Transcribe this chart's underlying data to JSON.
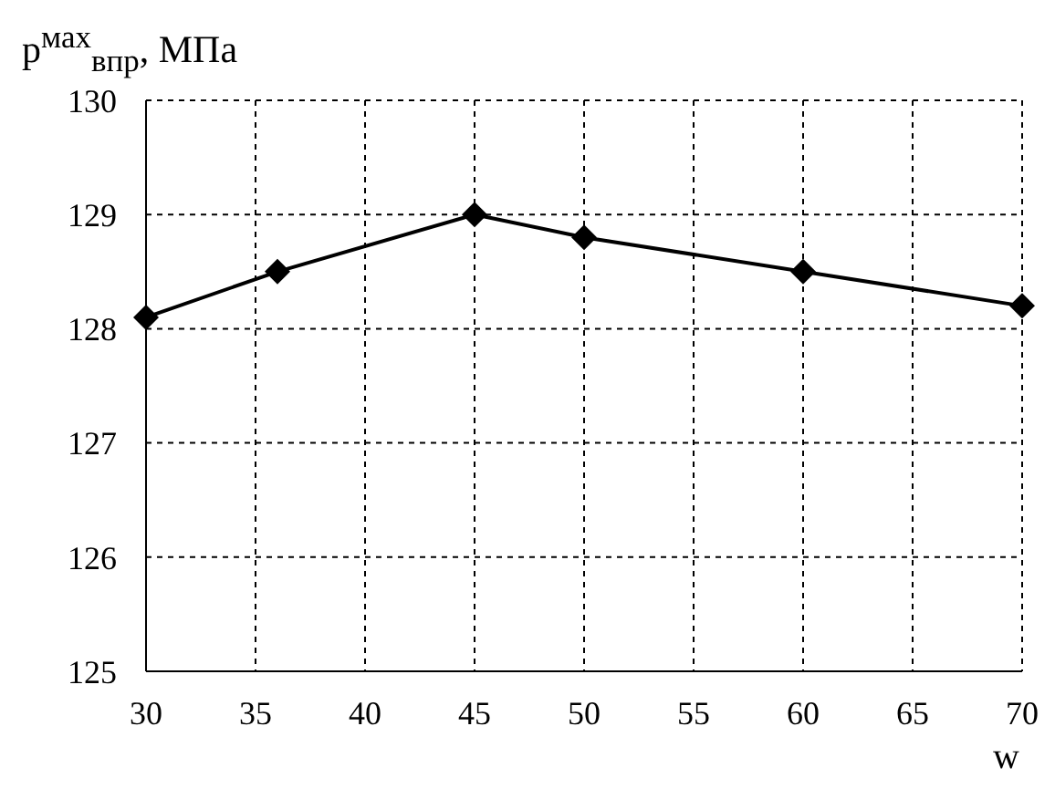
{
  "chart_data": {
    "type": "line",
    "ylabel": "p$^{мах}$$_{впр}$, МПа",
    "xlabel": "w",
    "x": [
      30,
      36,
      45,
      50,
      60,
      70
    ],
    "series": [
      {
        "color": "#000000",
        "values": [
          128.1,
          128.5,
          129.0,
          128.8,
          128.5,
          128.2
        ]
      }
    ],
    "xlim": [
      30,
      70
    ],
    "xticks": [
      30,
      35,
      40,
      45,
      50,
      55,
      60,
      65,
      70
    ],
    "ylim": [
      125,
      130
    ],
    "yticks": [
      125,
      126,
      127,
      128,
      129,
      130
    ],
    "grid": true,
    "marker": "diamond",
    "line_style": "solid"
  }
}
